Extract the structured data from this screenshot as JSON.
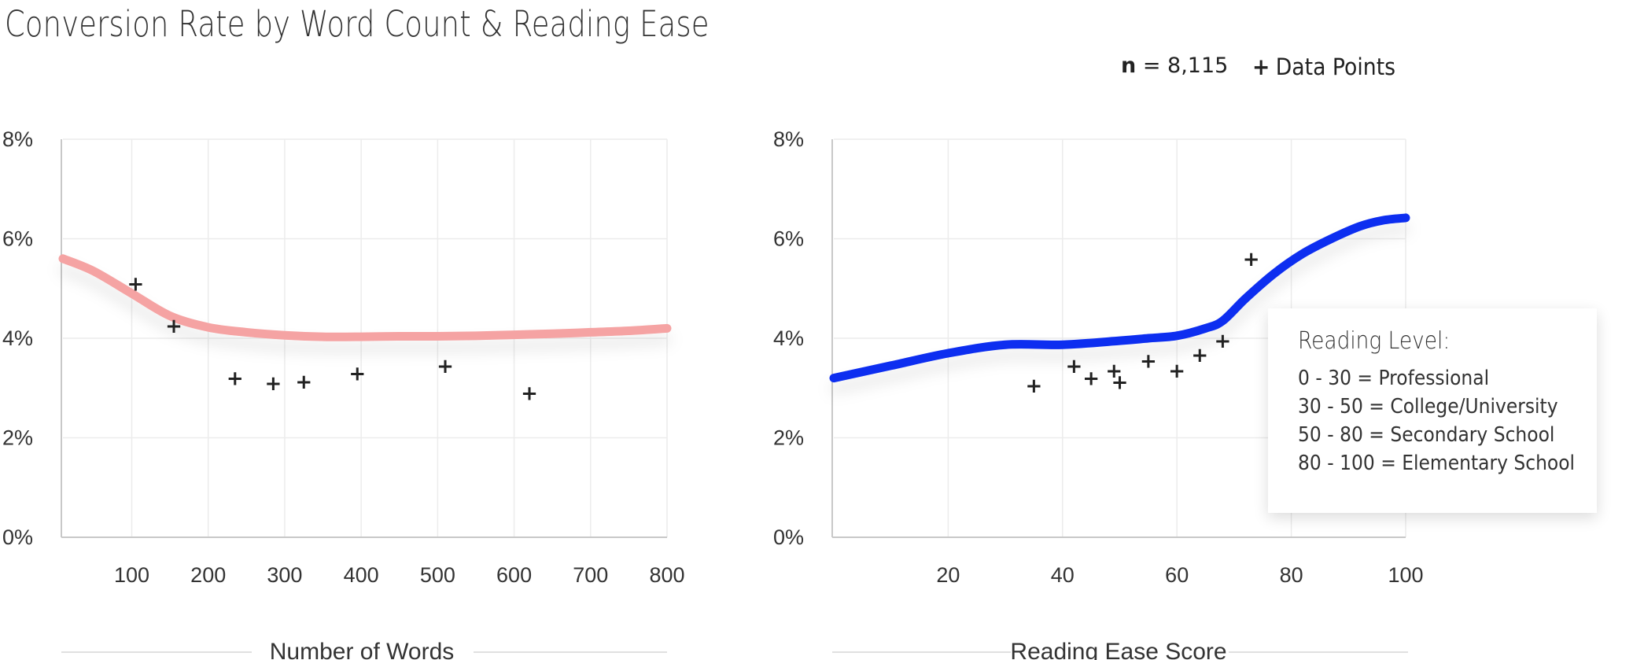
{
  "title": "Conversion Rate by Word Count & Reading Ease",
  "header": {
    "n_label": "n",
    "n_value": "= 8,115",
    "legend_marker": "+",
    "legend_label": "Data Points"
  },
  "reading_level": {
    "title": "Reading Level:",
    "items": [
      "0 - 30 = Professional",
      "30 - 50 = College/University",
      "50 - 80 = Secondary School",
      "80 - 100 = Elementary School"
    ]
  },
  "chart_data": [
    {
      "type": "line",
      "xlabel": "Number of Words",
      "ylabel": "",
      "x_ticks": [
        100,
        200,
        300,
        400,
        500,
        600,
        700,
        800
      ],
      "y_ticks": [
        "0%",
        "2%",
        "4%",
        "6%",
        "8%"
      ],
      "xlim": [
        10,
        800
      ],
      "ylim": [
        0,
        8
      ],
      "grid": true,
      "line_color": "#f5a3a3",
      "trend": {
        "x": [
          10,
          50,
          100,
          150,
          200,
          250,
          300,
          350,
          400,
          450,
          500,
          550,
          600,
          650,
          700,
          750,
          800
        ],
        "y": [
          5.6,
          5.35,
          4.9,
          4.45,
          4.22,
          4.12,
          4.06,
          4.03,
          4.03,
          4.04,
          4.04,
          4.05,
          4.07,
          4.09,
          4.12,
          4.15,
          4.2
        ]
      },
      "points": {
        "x": [
          105,
          155,
          235,
          285,
          325,
          395,
          510,
          620
        ],
        "y": [
          5.1,
          4.25,
          3.2,
          3.1,
          3.13,
          3.3,
          3.45,
          2.9
        ]
      }
    },
    {
      "type": "line",
      "xlabel": "Reading Ease Score",
      "ylabel": "",
      "x_ticks": [
        20,
        40,
        60,
        80,
        100
      ],
      "y_ticks": [
        "0%",
        "2%",
        "4%",
        "6%",
        "8%"
      ],
      "xlim": [
        0,
        100
      ],
      "ylim": [
        0,
        8
      ],
      "grid": true,
      "line_color": "#0f2ff0",
      "trend": {
        "x": [
          0,
          10,
          20,
          30,
          40,
          50,
          55,
          60,
          65,
          68,
          72,
          77,
          82,
          87,
          92,
          96,
          100
        ],
        "y": [
          3.2,
          3.45,
          3.7,
          3.87,
          3.87,
          3.95,
          4.0,
          4.05,
          4.2,
          4.35,
          4.8,
          5.3,
          5.7,
          6.0,
          6.25,
          6.37,
          6.42
        ]
      },
      "points": {
        "x": [
          35,
          42,
          45,
          49,
          50,
          55,
          60,
          64,
          68,
          73
        ],
        "y": [
          3.05,
          3.45,
          3.2,
          3.35,
          3.12,
          3.55,
          3.35,
          3.67,
          3.95,
          5.6
        ]
      }
    }
  ]
}
